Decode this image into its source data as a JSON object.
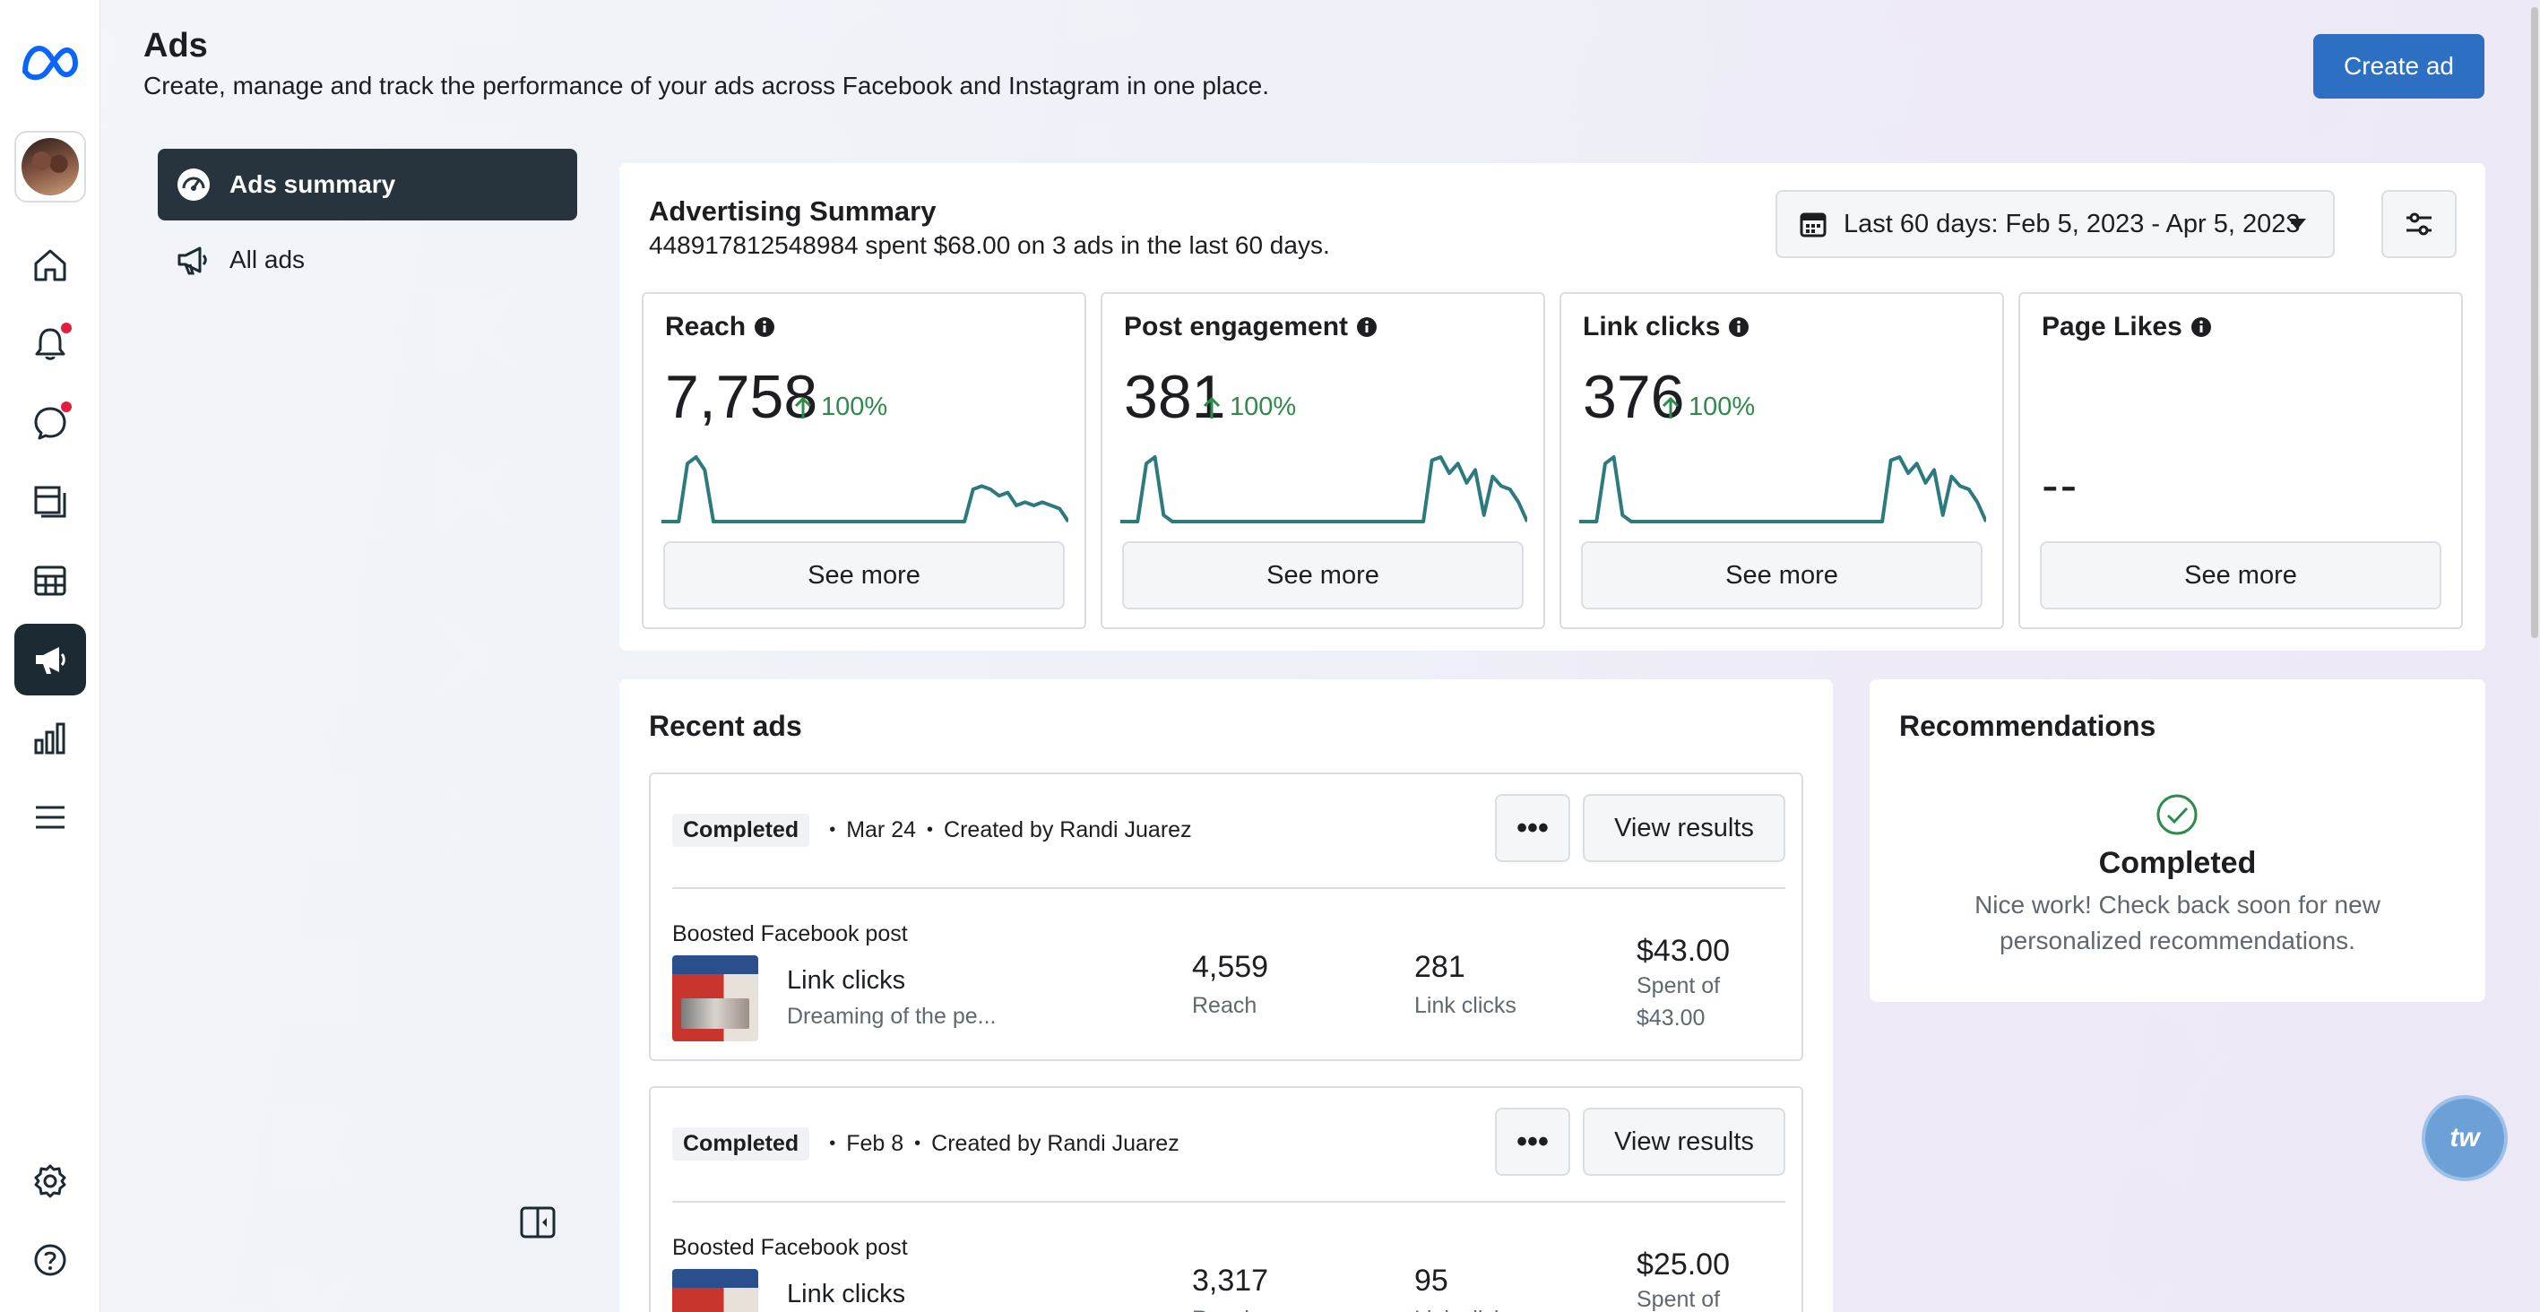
{
  "header": {
    "title": "Ads",
    "subtitle": "Create, manage and track the performance of your ads across Facebook and Instagram in one place.",
    "create_label": "Create ad"
  },
  "rail": {
    "logo": "meta-logo",
    "items": [
      "home-icon",
      "notifications-icon",
      "messages-icon",
      "pages-icon",
      "table-icon",
      "megaphone-icon",
      "insights-icon",
      "menu-icon",
      "settings-icon",
      "help-icon"
    ]
  },
  "nav": {
    "items": [
      {
        "label": "Ads summary",
        "icon": "dashboard-icon",
        "active": true
      },
      {
        "label": "All ads",
        "icon": "megaphone-icon",
        "active": false
      }
    ]
  },
  "summary": {
    "title": "Advertising Summary",
    "subtitle": "448917812548984 spent $68.00 on 3 ads in the last 60 days.",
    "date_range": "Last 60 days: Feb 5, 2023 - Apr 5, 2023",
    "metrics": [
      {
        "title": "Reach",
        "value": "7,758",
        "change": "100%",
        "see_more": "See more",
        "spark": [
          0,
          0,
          0,
          0.9,
          1,
          0.8,
          0,
          0,
          0,
          0,
          0,
          0,
          0,
          0,
          0,
          0,
          0,
          0,
          0,
          0,
          0,
          0,
          0,
          0,
          0,
          0,
          0,
          0,
          0,
          0,
          0,
          0,
          0,
          0,
          0,
          0,
          0.5,
          0.55,
          0.5,
          0.4,
          0.45,
          0.25,
          0.3,
          0.25,
          0.3,
          0.25,
          0.2,
          0
        ]
      },
      {
        "title": "Post engagement",
        "value": "381",
        "change": "100%",
        "see_more": "See more",
        "spark": [
          0,
          0,
          0,
          0.9,
          1,
          0.1,
          0,
          0,
          0,
          0,
          0,
          0,
          0,
          0,
          0,
          0,
          0,
          0,
          0,
          0,
          0,
          0,
          0,
          0,
          0,
          0,
          0,
          0,
          0,
          0,
          0,
          0,
          0,
          0,
          0,
          0,
          0.95,
          1,
          0.75,
          0.9,
          0.6,
          0.8,
          0.1,
          0.7,
          0.55,
          0.5,
          0.3,
          0
        ]
      },
      {
        "title": "Link clicks",
        "value": "376",
        "change": "100%",
        "see_more": "See more",
        "spark": [
          0,
          0,
          0,
          0.9,
          1,
          0.1,
          0,
          0,
          0,
          0,
          0,
          0,
          0,
          0,
          0,
          0,
          0,
          0,
          0,
          0,
          0,
          0,
          0,
          0,
          0,
          0,
          0,
          0,
          0,
          0,
          0,
          0,
          0,
          0,
          0,
          0,
          0.95,
          1,
          0.75,
          0.9,
          0.6,
          0.8,
          0.1,
          0.7,
          0.55,
          0.5,
          0.3,
          0
        ]
      },
      {
        "title": "Page Likes",
        "value": "--",
        "change": "",
        "see_more": "See more",
        "spark": []
      }
    ]
  },
  "recent": {
    "title": "Recent ads",
    "ads": [
      {
        "status": "Completed",
        "date": "Mar 24",
        "creator": "Created by Randi Juarez",
        "type": "Boosted Facebook post",
        "objective": "Link clicks",
        "desc": "Dreaming of the pe...",
        "reach": "4,559",
        "reach_label": "Reach",
        "clicks": "281",
        "clicks_label": "Link clicks",
        "spent": "$43.00",
        "spent_label_1": "Spent of",
        "spent_label_2": "$43.00",
        "view": "View results"
      },
      {
        "status": "Completed",
        "date": "Feb 8",
        "creator": "Created by Randi Juarez",
        "type": "Boosted Facebook post",
        "objective": "Link clicks",
        "desc": "",
        "reach": "3,317",
        "reach_label": "Reach",
        "clicks": "95",
        "clicks_label": "Link clicks",
        "spent": "$25.00",
        "spent_label_1": "Spent of",
        "spent_label_2": "",
        "view": "View results"
      }
    ]
  },
  "recommendations": {
    "title": "Recommendations",
    "status": "Completed",
    "text": "Nice work! Check back soon for new personalized recommendations."
  },
  "help_fab": "tw",
  "colors": {
    "accent": "#2d6fc2",
    "spark": "#2d7a7e",
    "positive": "#2f8a4c",
    "active_nav": "#27343d"
  }
}
